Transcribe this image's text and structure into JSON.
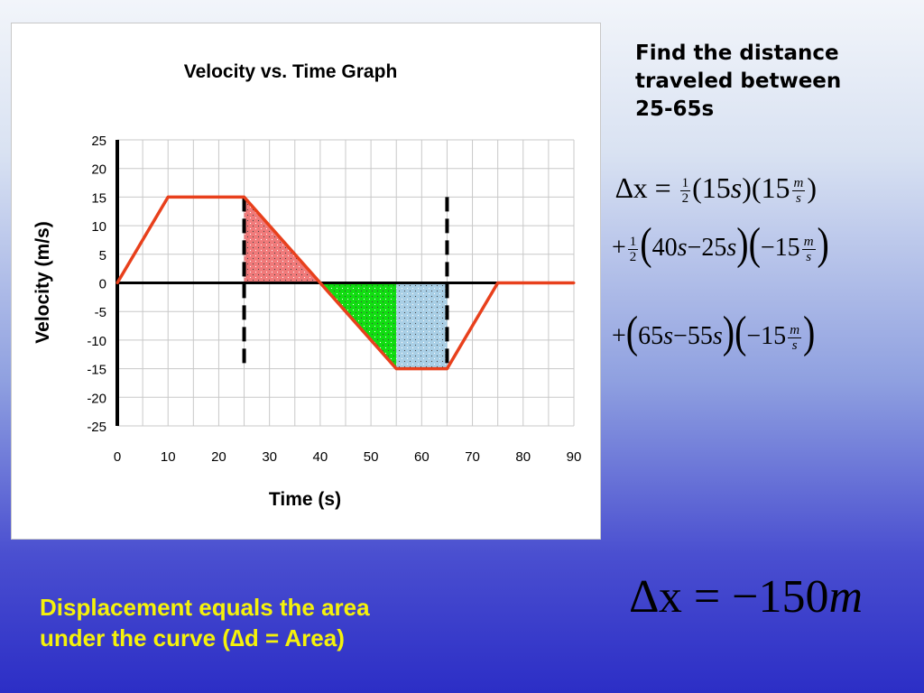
{
  "slide": {
    "prompt_lines": [
      "Find the distance",
      "traveled between",
      "25-65s"
    ],
    "footer_lines": [
      "Displacement equals the area",
      "under the curve   (∆d = Area)"
    ],
    "equations": {
      "line1": {
        "lhs": "∆x",
        "eq": "=",
        "frac_num": "1",
        "frac_den": "2",
        "t1": "(15",
        "t1_unit": "s",
        "t2": ")(15",
        "u_num": "m",
        "u_den": "s",
        "close": ")"
      },
      "line2": {
        "plus": "+",
        "frac_num": "1",
        "frac_den": "2",
        "a": "40",
        "a_unit": "s",
        "minus": "−",
        "b": "25",
        "b_unit": "s",
        "c": "−15",
        "u_num": "m",
        "u_den": "s"
      },
      "line3": {
        "plus": "+",
        "a": "65",
        "a_unit": "s",
        "minus": "−",
        "b": "55",
        "b_unit": "s",
        "c": "−15",
        "u_num": "m",
        "u_den": "s"
      },
      "result": {
        "lhs": "∆x",
        "eq": "=",
        "value": "−150",
        "unit": "m"
      }
    }
  },
  "chart_data": {
    "type": "line",
    "title": "Velocity vs. Time Graph",
    "xlabel": "Time (s)",
    "ylabel": "Velocity (m/s)",
    "xlim": [
      0,
      90
    ],
    "ylim": [
      -25,
      25
    ],
    "xticks": [
      0,
      10,
      20,
      30,
      40,
      50,
      60,
      70,
      80,
      90
    ],
    "yticks": [
      25,
      20,
      15,
      10,
      5,
      0,
      -5,
      -10,
      -15,
      -20,
      -25
    ],
    "grid": true,
    "series": [
      {
        "color": "#e8401c",
        "x": [
          0,
          10,
          25,
          40,
          55,
          65,
          75,
          90
        ],
        "y": [
          0,
          15,
          15,
          0,
          -15,
          -15,
          0,
          0
        ]
      }
    ],
    "shaded_regions": [
      {
        "x": [
          25,
          40
        ],
        "fill": "#f07a7a",
        "pattern": "dots"
      },
      {
        "x": [
          40,
          55
        ],
        "fill": "#11dd11",
        "pattern": "dots"
      },
      {
        "x": [
          55,
          65
        ],
        "fill": "#a9cfe6",
        "pattern": "dots"
      }
    ],
    "dashed_markers_x": [
      25,
      65
    ],
    "colors": {
      "line": "#e8401c",
      "axis": "#000000",
      "grid": "#c8c8c8"
    }
  }
}
